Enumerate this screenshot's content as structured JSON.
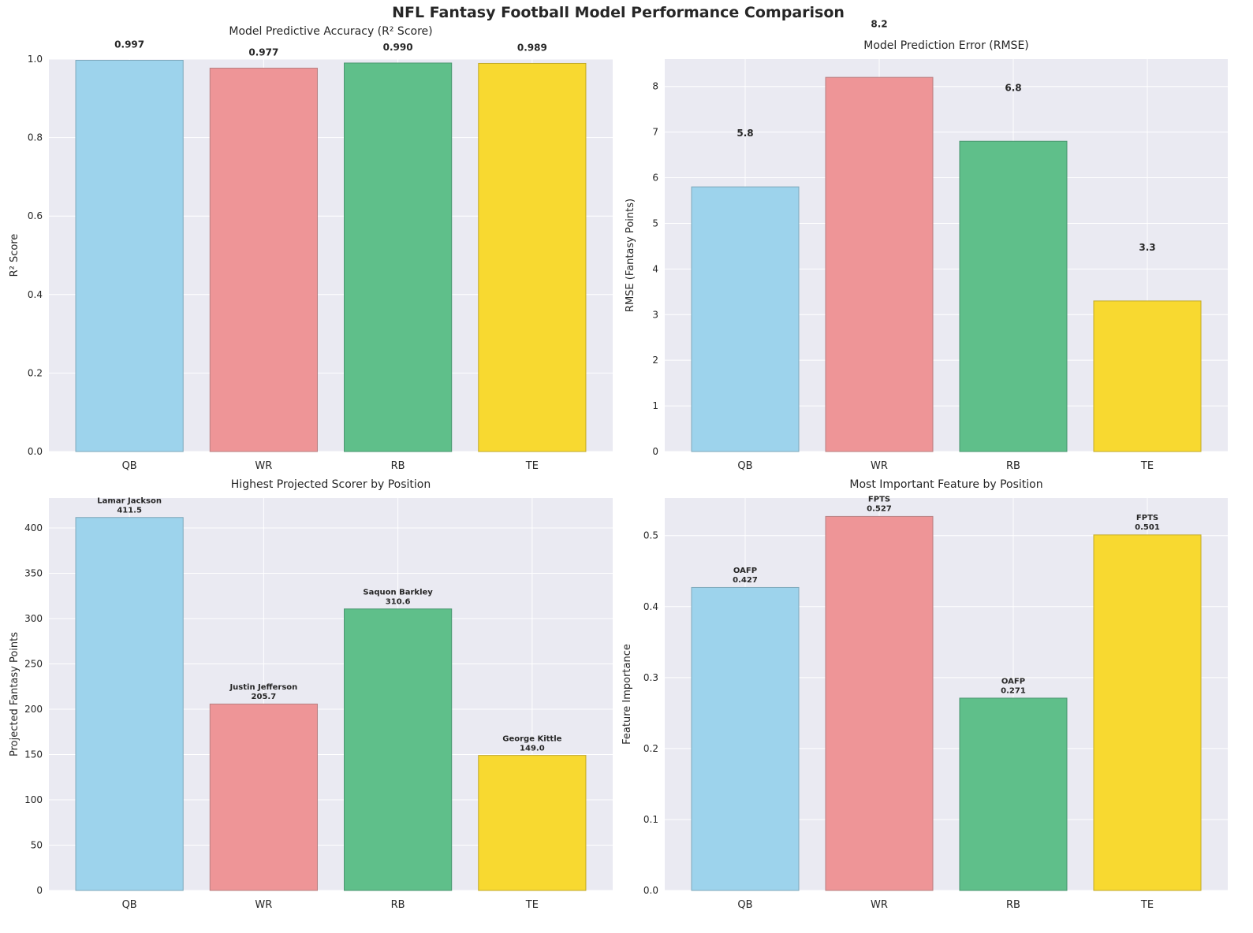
{
  "title": "NFL Fantasy Football Model Performance Comparison",
  "chart_data": [
    {
      "type": "bar",
      "title": "Model Predictive Accuracy (R² Score)",
      "xlabel": "",
      "ylabel": "R² Score",
      "categories": [
        "QB",
        "WR",
        "RB",
        "TE"
      ],
      "values": [
        0.997,
        0.977,
        0.99,
        0.989
      ],
      "data_labels": [
        [
          "0.997"
        ],
        [
          "0.977"
        ],
        [
          "0.990"
        ],
        [
          "0.989"
        ]
      ],
      "label_offset": 0.02,
      "ylim": [
        0,
        1.0
      ],
      "yticks": [
        0,
        0.2,
        0.4,
        0.6,
        0.8,
        1.0
      ],
      "ytick_labels": [
        "0.0",
        "0.2",
        "0.4",
        "0.6",
        "0.8",
        "1.0"
      ],
      "grid": true
    },
    {
      "type": "bar",
      "title": "Model Prediction Error (RMSE)",
      "xlabel": "",
      "ylabel": "RMSE (Fantasy Points)",
      "categories": [
        "QB",
        "WR",
        "RB",
        "TE"
      ],
      "values": [
        5.8,
        8.2,
        6.8,
        3.3
      ],
      "data_labels": [
        [
          "5.8"
        ],
        [
          "8.2"
        ],
        [
          "6.8"
        ],
        [
          "3.3"
        ]
      ],
      "label_offset": 1.0,
      "ylim": [
        0,
        8.6
      ],
      "yticks": [
        0,
        1,
        2,
        3,
        4,
        5,
        6,
        7,
        8
      ],
      "ytick_labels": [
        "0",
        "1",
        "2",
        "3",
        "4",
        "5",
        "6",
        "7",
        "8"
      ],
      "grid": true
    },
    {
      "type": "bar",
      "title": "Highest Projected Scorer by Position",
      "xlabel": "",
      "ylabel": "Projected Fantasy Points",
      "categories": [
        "QB",
        "WR",
        "RB",
        "TE"
      ],
      "values": [
        411.5,
        205.7,
        310.6,
        149.0
      ],
      "data_labels": [
        [
          "Lamar Jackson",
          "411.5"
        ],
        [
          "Justin Jefferson",
          "205.7"
        ],
        [
          "Saquon Barkley",
          "310.6"
        ],
        [
          "George Kittle",
          "149.0"
        ]
      ],
      "label_offset": 2,
      "ylim": [
        0,
        433
      ],
      "yticks": [
        0,
        50,
        100,
        150,
        200,
        250,
        300,
        350,
        400
      ],
      "ytick_labels": [
        "0",
        "50",
        "100",
        "150",
        "200",
        "250",
        "300",
        "350",
        "400"
      ],
      "grid": true
    },
    {
      "type": "bar",
      "title": "Most Important Feature by Position",
      "xlabel": "",
      "ylabel": "Feature Importance",
      "categories": [
        "QB",
        "WR",
        "RB",
        "TE"
      ],
      "values": [
        0.427,
        0.527,
        0.271,
        0.501
      ],
      "data_labels": [
        [
          "OAFP",
          "0.427"
        ],
        [
          "FPTS",
          "0.527"
        ],
        [
          "OAFP",
          "0.271"
        ],
        [
          "FPTS",
          "0.501"
        ]
      ],
      "label_offset": 0.003,
      "ylim": [
        0,
        0.553
      ],
      "yticks": [
        0,
        0.1,
        0.2,
        0.3,
        0.4,
        0.5
      ],
      "ytick_labels": [
        "0.0",
        "0.1",
        "0.2",
        "0.3",
        "0.4",
        "0.5"
      ],
      "grid": true
    }
  ],
  "colors": {
    "bars": [
      "#9dd3ec",
      "#ee9597",
      "#5fbf8a",
      "#f8d930"
    ],
    "bar_edges": [
      "#7fa8bb",
      "#b88082",
      "#4a9670",
      "#c2aa2a"
    ],
    "axes_background": "#eaeaf2",
    "grid": "#ffffff"
  }
}
